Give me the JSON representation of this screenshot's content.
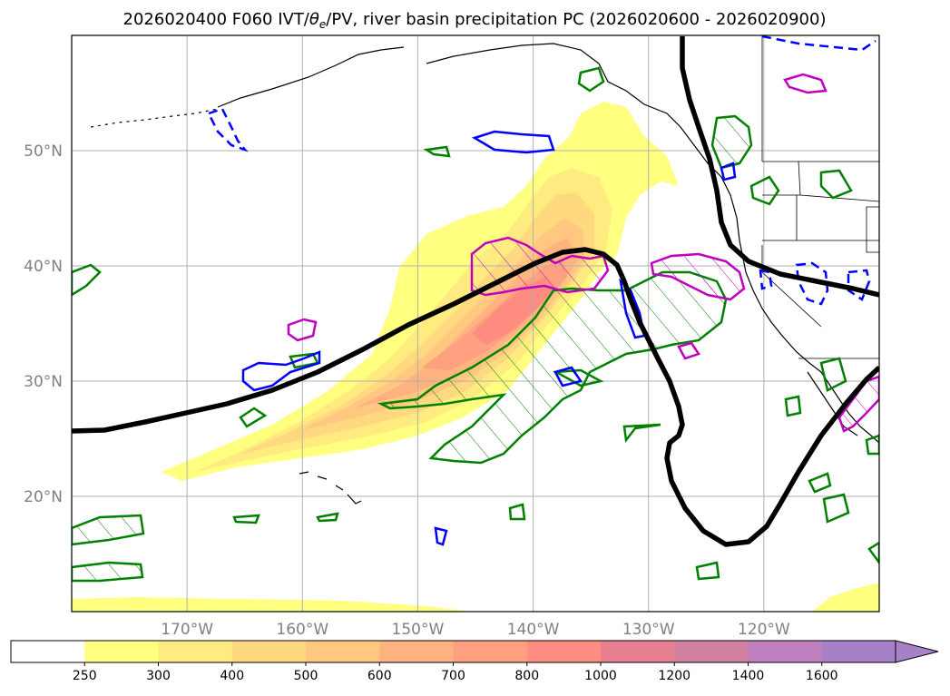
{
  "title": "2026020400 F060 IVT/θe/PV, river basin precipitation PC (2026020600 - 2026020900)",
  "title_parts": {
    "prefix": "2026020400 F060 IVT/",
    "theta": "θ",
    "sub": "e",
    "suffix": "/PV, river basin precipitation PC (2026020600 - 2026020900)"
  },
  "map": {
    "lon_range": [
      -180,
      -110
    ],
    "lat_range": [
      10,
      60
    ],
    "lat_ticks": [
      {
        "value": 20,
        "label": "20°N"
      },
      {
        "value": 30,
        "label": "30°N"
      },
      {
        "value": 40,
        "label": "40°N"
      },
      {
        "value": 50,
        "label": "50°N"
      }
    ],
    "lon_ticks": [
      {
        "value": -170,
        "label": "170°W"
      },
      {
        "value": -160,
        "label": "160°W"
      },
      {
        "value": -150,
        "label": "150°W"
      },
      {
        "value": -140,
        "label": "140°W"
      },
      {
        "value": -130,
        "label": "130°W"
      },
      {
        "value": -120,
        "label": "120°W"
      }
    ],
    "grid": true,
    "colors": {
      "pv_contour": "#000000",
      "theta_e_contour": "#008000",
      "blue_contour": "#0000ff",
      "magenta_contour": "#c000c0",
      "coastline": "#000000"
    }
  },
  "colorbar": {
    "levels": [
      "250",
      "300",
      "400",
      "500",
      "600",
      "700",
      "800",
      "1000",
      "1200",
      "1400",
      "1600"
    ],
    "colors": [
      "#ffffff",
      "#ffff80",
      "#ffeb80",
      "#ffd980",
      "#ffc780",
      "#ffb380",
      "#ffa080",
      "#ff8c80",
      "#e77f90",
      "#d080a0",
      "#c080c0",
      "#a880c8"
    ],
    "extend": "max"
  }
}
